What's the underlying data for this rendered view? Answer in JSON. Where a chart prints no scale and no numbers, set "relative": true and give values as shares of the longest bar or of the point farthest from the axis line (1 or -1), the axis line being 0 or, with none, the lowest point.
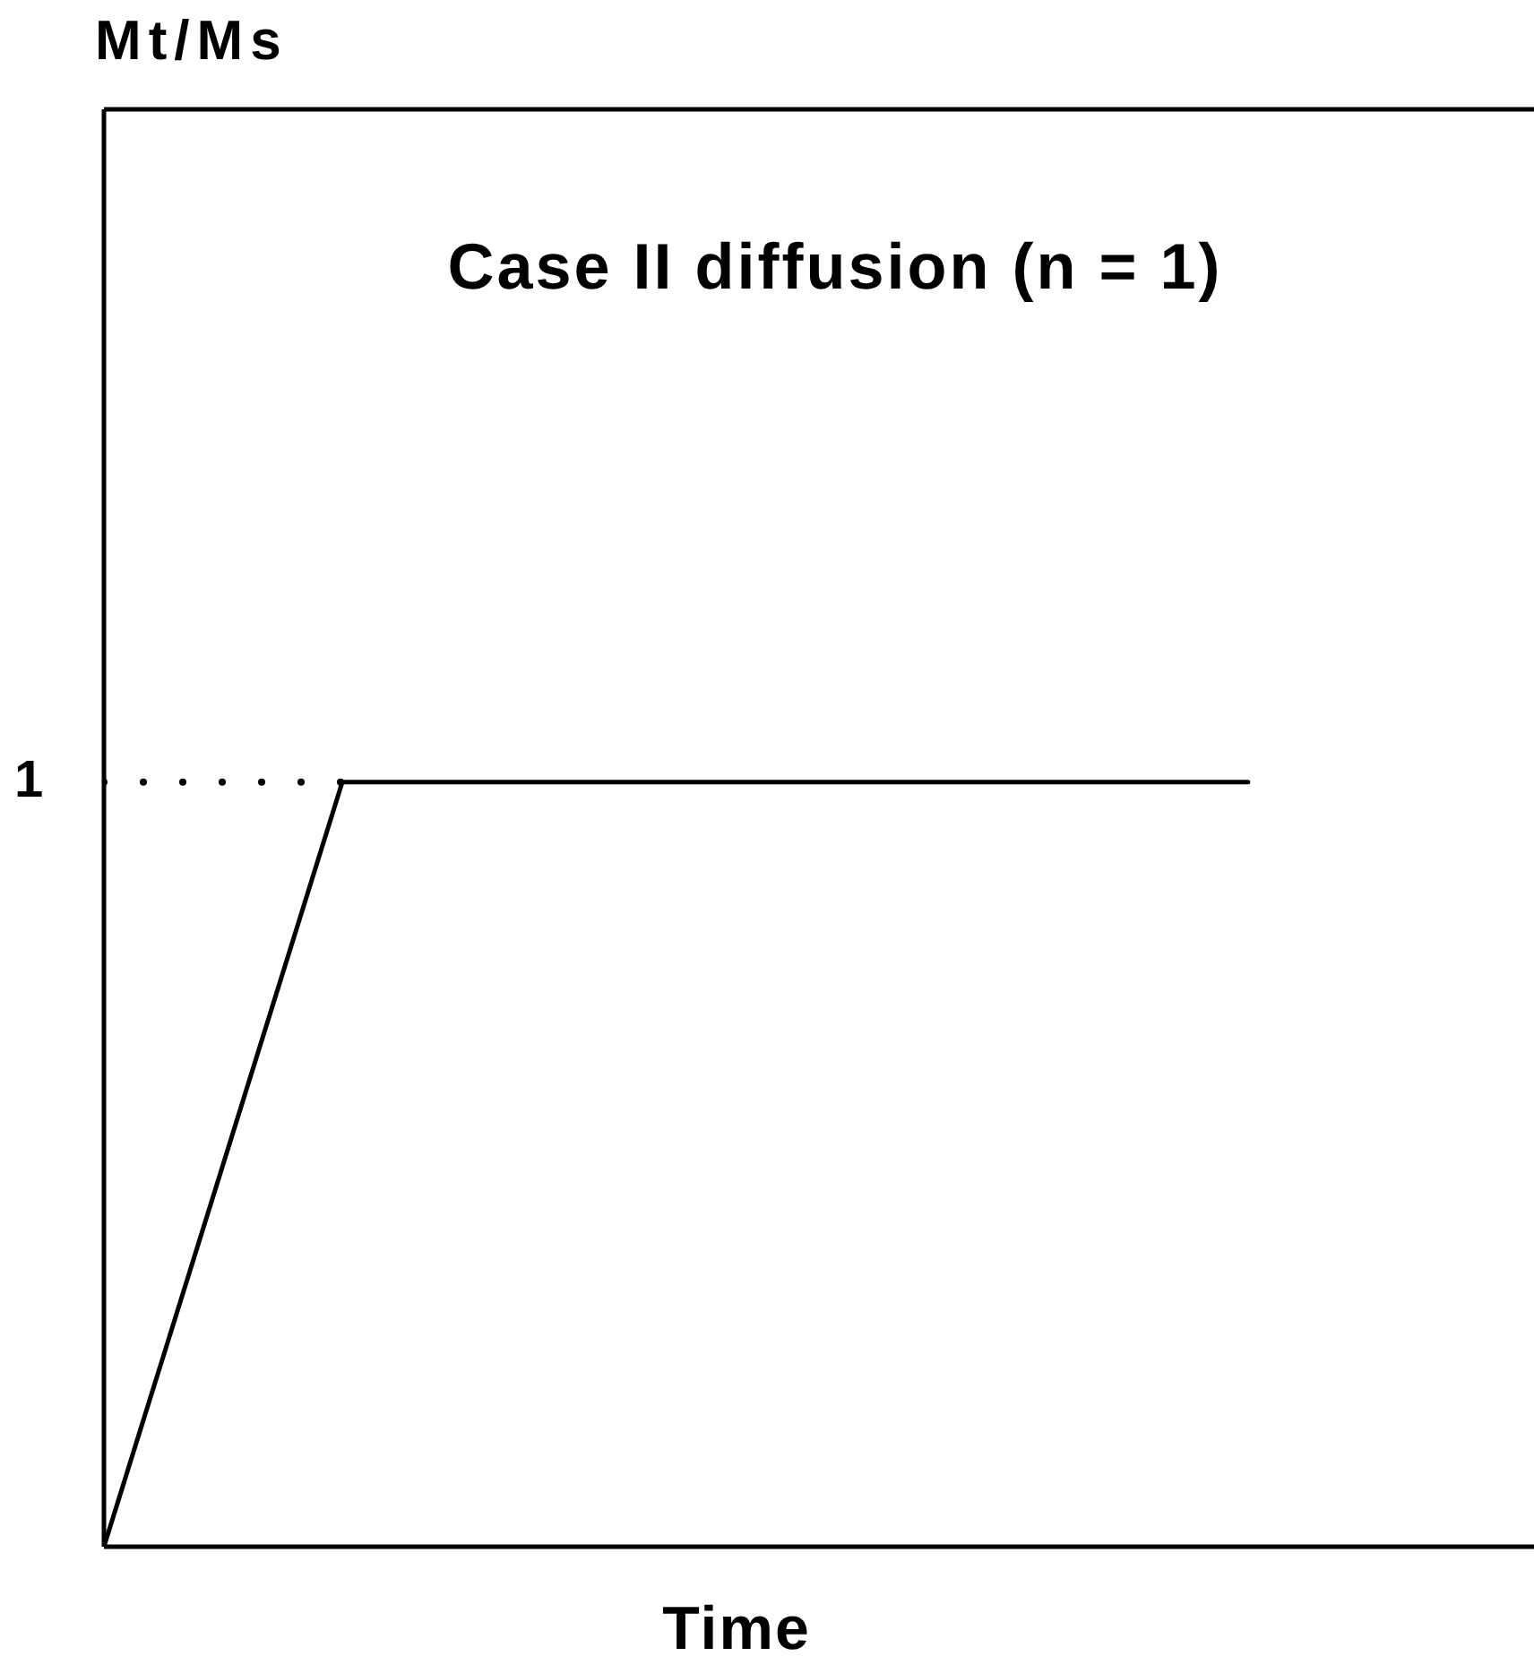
{
  "chart_data": {
    "type": "line",
    "title": "Case II diffusion (n = 1)",
    "xlabel": "Time",
    "relative": true,
    "marker": "none",
    "categories": [
      null,
      null,
      null,
      null,
      null,
      null,
      null,
      null,
      null,
      null,
      null,
      null,
      null,
      null,
      null,
      null,
      null,
      null,
      null,
      null,
      null,
      null,
      null,
      null,
      null,
      null,
      null,
      null,
      null,
      null,
      null
    ],
    "series": [
      {
        "color": "#000000",
        "line_style": "solid",
        "values": [
          0,
          0.2,
          0.4,
          0.6,
          0.8,
          1,
          1,
          1,
          1,
          1,
          1,
          1,
          1,
          1,
          1,
          1,
          1,
          1,
          1,
          1,
          1,
          1,
          1,
          1,
          1,
          null,
          null,
          null,
          null,
          null,
          null
        ]
      },
      {
        "color": "#000000",
        "line_style": "dotted",
        "values": [
          1,
          1,
          1,
          1,
          1,
          1,
          null,
          null,
          null,
          null,
          null,
          null,
          null,
          null,
          null,
          null,
          null,
          null,
          null,
          null,
          null,
          null,
          null,
          null,
          null,
          null,
          null,
          null,
          null,
          null,
          null
        ]
      }
    ],
    "annotations": [
      "Mt/Ms",
      "1"
    ]
  }
}
